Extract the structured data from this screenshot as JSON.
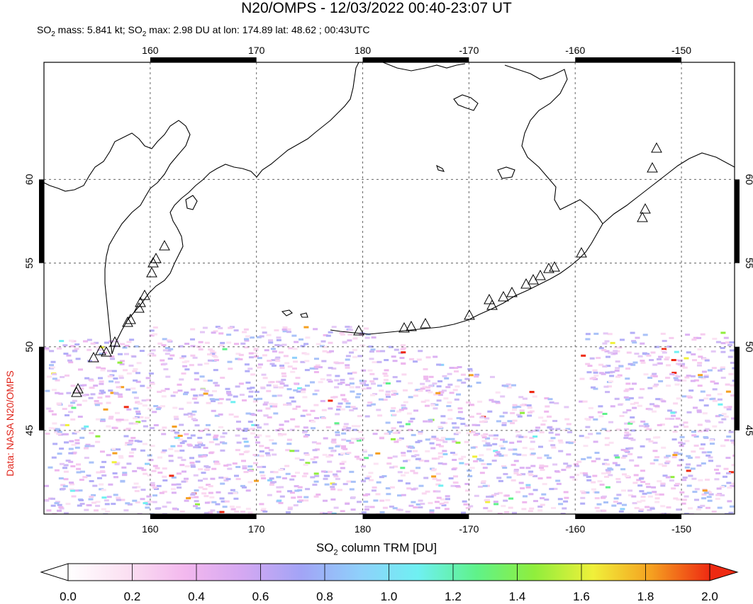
{
  "header": {
    "title": "N20/OMPS - 12/03/2022 00:40-23:07 UT",
    "subtitle_mass_prefix": "SO",
    "subtitle_mass_sub": "2",
    "subtitle_mass_text": " mass: 5.841 kt; SO",
    "subtitle_max_sub": "2",
    "subtitle_max_text": " max: 2.98 DU at lon: 174.89 lat: 48.62 ; 00:43UTC"
  },
  "credit": "Data: NASA N20/OMPS",
  "map": {
    "lon_ticks": [
      "160",
      "170",
      "180",
      "-170",
      "-160",
      "-150"
    ],
    "lat_ticks": [
      "60",
      "55",
      "50",
      "45"
    ],
    "lon_values": [
      160,
      170,
      180,
      190,
      200,
      210
    ],
    "lat_values": [
      60,
      55,
      50,
      45
    ],
    "lon_range": [
      150,
      215
    ],
    "lat_range": [
      40,
      67
    ],
    "grid": true,
    "grid_style": "dashed",
    "volcano_marker": "triangle-outline",
    "colors": {
      "frame": "#000000",
      "grid": "#666666",
      "coast": "#000000"
    }
  },
  "colorbar": {
    "title_prefix": "SO",
    "title_sub": "2",
    "title_text": " column TRM [DU]",
    "tick_labels": [
      "0.0",
      "0.2",
      "0.4",
      "0.6",
      "0.8",
      "1.0",
      "1.2",
      "1.4",
      "1.6",
      "1.8",
      "2.0"
    ],
    "range": [
      0.0,
      2.0
    ],
    "colors": [
      "#ffffff",
      "#fbe0f2",
      "#f3b8ee",
      "#d4a8f2",
      "#a2a4f6",
      "#8fd0fb",
      "#6ff0f2",
      "#5ff28a",
      "#90ee3c",
      "#f0f03a",
      "#f5a020",
      "#ee2a12"
    ],
    "under_color": "#ffffff",
    "over_color": "#ee2a12"
  }
}
